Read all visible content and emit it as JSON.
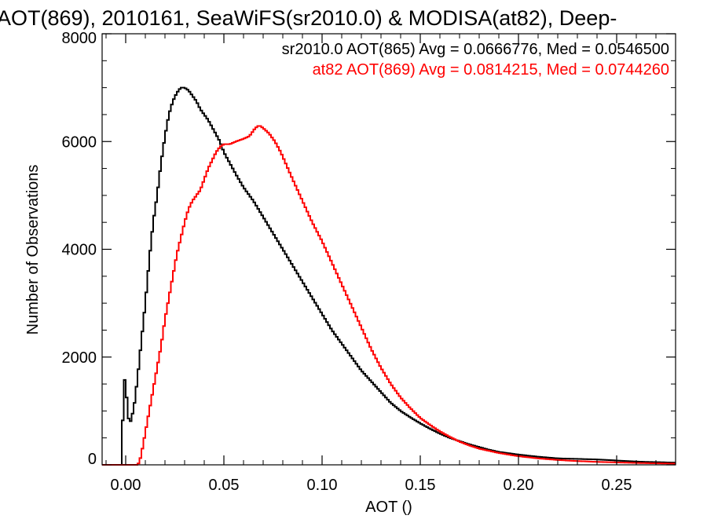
{
  "chart_data": {
    "type": "line",
    "title": "AOT(869), 2010161, SeaWiFS(sr2010.0) & MODISA(at82), Deep-",
    "xlabel": "AOT ()",
    "ylabel": "Number of Observations",
    "xlim": [
      -0.012,
      0.28
    ],
    "ylim": [
      0,
      8000
    ],
    "xticks": [
      0.0,
      0.05,
      0.1,
      0.15,
      0.2,
      0.25
    ],
    "xtick_labels": [
      "0.00",
      "0.05",
      "0.10",
      "0.15",
      "0.20",
      "0.25"
    ],
    "yticks": [
      0,
      2000,
      4000,
      6000,
      8000
    ],
    "ytick_labels": [
      "0",
      "2000",
      "4000",
      "6000",
      "8000"
    ],
    "grid": false,
    "legend_position": "top-right",
    "series": [
      {
        "name": "sr2010.0 AOT(865) Avg = 0.0666776, Med = 0.0546500",
        "color": "#000000",
        "points": [
          [
            -0.012,
            0
          ],
          [
            -0.002,
            0
          ],
          [
            -0.001,
            1650
          ],
          [
            0.0,
            1500
          ],
          [
            0.001,
            1000
          ],
          [
            0.002,
            720
          ],
          [
            0.003,
            900
          ],
          [
            0.004,
            1000
          ],
          [
            0.005,
            1300
          ],
          [
            0.006,
            1600
          ],
          [
            0.008,
            2300
          ],
          [
            0.01,
            3000
          ],
          [
            0.012,
            3800
          ],
          [
            0.014,
            4500
          ],
          [
            0.016,
            5000
          ],
          [
            0.018,
            5600
          ],
          [
            0.02,
            6100
          ],
          [
            0.022,
            6500
          ],
          [
            0.024,
            6750
          ],
          [
            0.026,
            6900
          ],
          [
            0.028,
            7000
          ],
          [
            0.03,
            7000
          ],
          [
            0.032,
            6950
          ],
          [
            0.034,
            6850
          ],
          [
            0.036,
            6750
          ],
          [
            0.038,
            6600
          ],
          [
            0.04,
            6500
          ],
          [
            0.042,
            6400
          ],
          [
            0.045,
            6200
          ],
          [
            0.048,
            6000
          ],
          [
            0.05,
            5800
          ],
          [
            0.053,
            5600
          ],
          [
            0.056,
            5400
          ],
          [
            0.06,
            5150
          ],
          [
            0.065,
            4900
          ],
          [
            0.07,
            4600
          ],
          [
            0.075,
            4300
          ],
          [
            0.08,
            4000
          ],
          [
            0.085,
            3700
          ],
          [
            0.09,
            3400
          ],
          [
            0.095,
            3100
          ],
          [
            0.1,
            2800
          ],
          [
            0.105,
            2500
          ],
          [
            0.11,
            2250
          ],
          [
            0.115,
            2000
          ],
          [
            0.12,
            1750
          ],
          [
            0.125,
            1550
          ],
          [
            0.13,
            1350
          ],
          [
            0.135,
            1150
          ],
          [
            0.14,
            1000
          ],
          [
            0.145,
            880
          ],
          [
            0.15,
            770
          ],
          [
            0.155,
            670
          ],
          [
            0.16,
            580
          ],
          [
            0.165,
            500
          ],
          [
            0.17,
            440
          ],
          [
            0.175,
            380
          ],
          [
            0.18,
            330
          ],
          [
            0.185,
            280
          ],
          [
            0.19,
            240
          ],
          [
            0.2,
            190
          ],
          [
            0.21,
            150
          ],
          [
            0.22,
            120
          ],
          [
            0.23,
            110
          ],
          [
            0.24,
            100
          ],
          [
            0.25,
            80
          ],
          [
            0.26,
            60
          ],
          [
            0.27,
            50
          ],
          [
            0.28,
            40
          ]
        ]
      },
      {
        "name": "at82 AOT(869) Avg = 0.0814215, Med = 0.0744260",
        "color": "#ff0000",
        "points": [
          [
            -0.012,
            0
          ],
          [
            0.006,
            0
          ],
          [
            0.007,
            50
          ],
          [
            0.008,
            200
          ],
          [
            0.01,
            600
          ],
          [
            0.012,
            1000
          ],
          [
            0.014,
            1400
          ],
          [
            0.016,
            1800
          ],
          [
            0.018,
            2200
          ],
          [
            0.02,
            2700
          ],
          [
            0.022,
            3100
          ],
          [
            0.024,
            3500
          ],
          [
            0.026,
            3900
          ],
          [
            0.028,
            4200
          ],
          [
            0.03,
            4500
          ],
          [
            0.032,
            4750
          ],
          [
            0.034,
            4900
          ],
          [
            0.036,
            5000
          ],
          [
            0.038,
            5100
          ],
          [
            0.04,
            5300
          ],
          [
            0.042,
            5500
          ],
          [
            0.044,
            5650
          ],
          [
            0.046,
            5800
          ],
          [
            0.048,
            5900
          ],
          [
            0.05,
            5950
          ],
          [
            0.053,
            5950
          ],
          [
            0.056,
            6000
          ],
          [
            0.06,
            6050
          ],
          [
            0.063,
            6100
          ],
          [
            0.066,
            6250
          ],
          [
            0.068,
            6300
          ],
          [
            0.07,
            6250
          ],
          [
            0.073,
            6150
          ],
          [
            0.076,
            6000
          ],
          [
            0.079,
            5800
          ],
          [
            0.082,
            5550
          ],
          [
            0.085,
            5300
          ],
          [
            0.09,
            4900
          ],
          [
            0.095,
            4500
          ],
          [
            0.1,
            4150
          ],
          [
            0.105,
            3750
          ],
          [
            0.11,
            3350
          ],
          [
            0.115,
            2950
          ],
          [
            0.12,
            2550
          ],
          [
            0.125,
            2150
          ],
          [
            0.13,
            1800
          ],
          [
            0.135,
            1500
          ],
          [
            0.14,
            1250
          ],
          [
            0.145,
            1050
          ],
          [
            0.15,
            870
          ],
          [
            0.155,
            740
          ],
          [
            0.16,
            620
          ],
          [
            0.165,
            520
          ],
          [
            0.17,
            430
          ],
          [
            0.175,
            360
          ],
          [
            0.18,
            300
          ],
          [
            0.19,
            220
          ],
          [
            0.2,
            160
          ],
          [
            0.21,
            120
          ],
          [
            0.22,
            90
          ],
          [
            0.23,
            70
          ],
          [
            0.24,
            55
          ],
          [
            0.25,
            45
          ],
          [
            0.26,
            35
          ],
          [
            0.27,
            28
          ],
          [
            0.28,
            22
          ]
        ]
      }
    ]
  }
}
